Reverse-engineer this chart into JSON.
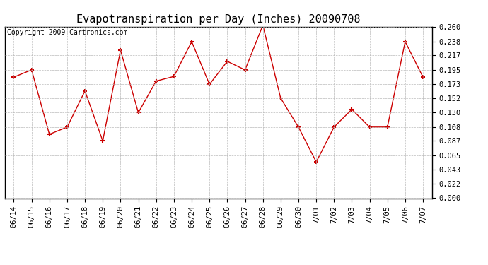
{
  "title": "Evapotranspiration per Day (Inches) 20090708",
  "copyright": "Copyright 2009 Cartronics.com",
  "x_labels": [
    "06/14",
    "06/15",
    "06/16",
    "06/17",
    "06/18",
    "06/19",
    "06/20",
    "06/21",
    "06/22",
    "06/23",
    "06/24",
    "06/25",
    "06/26",
    "06/27",
    "06/28",
    "06/29",
    "06/30",
    "7/01",
    "7/02",
    "7/03",
    "7/04",
    "7/05",
    "7/06",
    "7/07"
  ],
  "y_values": [
    0.184,
    0.195,
    0.097,
    0.108,
    0.163,
    0.087,
    0.225,
    0.13,
    0.178,
    0.185,
    0.238,
    0.173,
    0.208,
    0.195,
    0.263,
    0.152,
    0.108,
    0.055,
    0.108,
    0.135,
    0.108,
    0.108,
    0.238,
    0.184
  ],
  "line_color": "#cc0000",
  "marker": "+",
  "marker_color": "#cc0000",
  "bg_color": "#ffffff",
  "grid_color": "#bbbbbb",
  "y_ticks": [
    0.0,
    0.022,
    0.043,
    0.065,
    0.087,
    0.108,
    0.13,
    0.152,
    0.173,
    0.195,
    0.217,
    0.238,
    0.26
  ],
  "ylim": [
    0.0,
    0.26
  ],
  "title_fontsize": 11,
  "tick_fontsize": 7.5,
  "copyright_fontsize": 7
}
